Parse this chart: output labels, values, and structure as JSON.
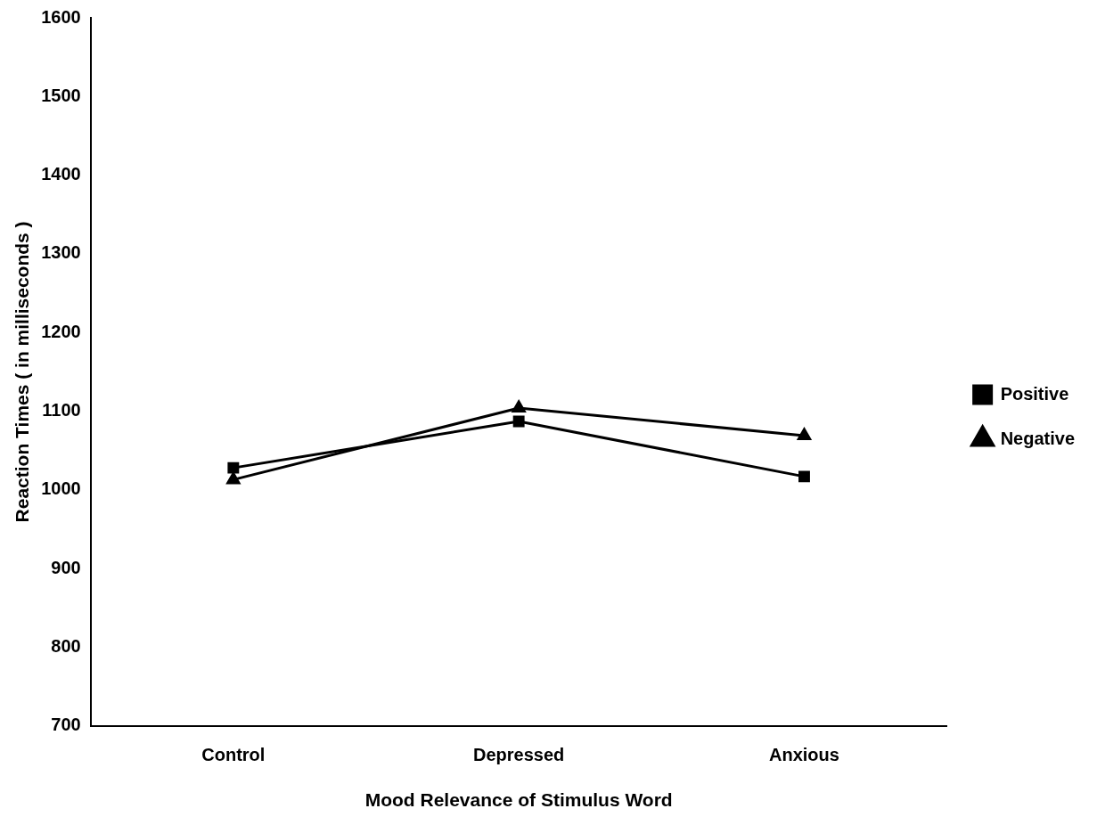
{
  "chart_data": {
    "type": "line",
    "xlabel": "Mood Relevance of Stimulus Word",
    "ylabel": "Reaction Times ( in milliseconds )",
    "categories": [
      "Control",
      "Depressed",
      "Anxious"
    ],
    "series": [
      {
        "name": "Positive",
        "color": "#000000",
        "marker": "square",
        "values": [
          1028,
          1087,
          1017
        ]
      },
      {
        "name": "Negative",
        "color": "#000000",
        "marker": "triangle",
        "values": [
          1013,
          1104,
          1069
        ]
      }
    ],
    "ylim": [
      700,
      1600
    ],
    "yticks": [
      700,
      800,
      900,
      1000,
      1100,
      1200,
      1300,
      1400,
      1500,
      1600
    ],
    "grid": false,
    "legend": "right",
    "line_style": "solid"
  }
}
